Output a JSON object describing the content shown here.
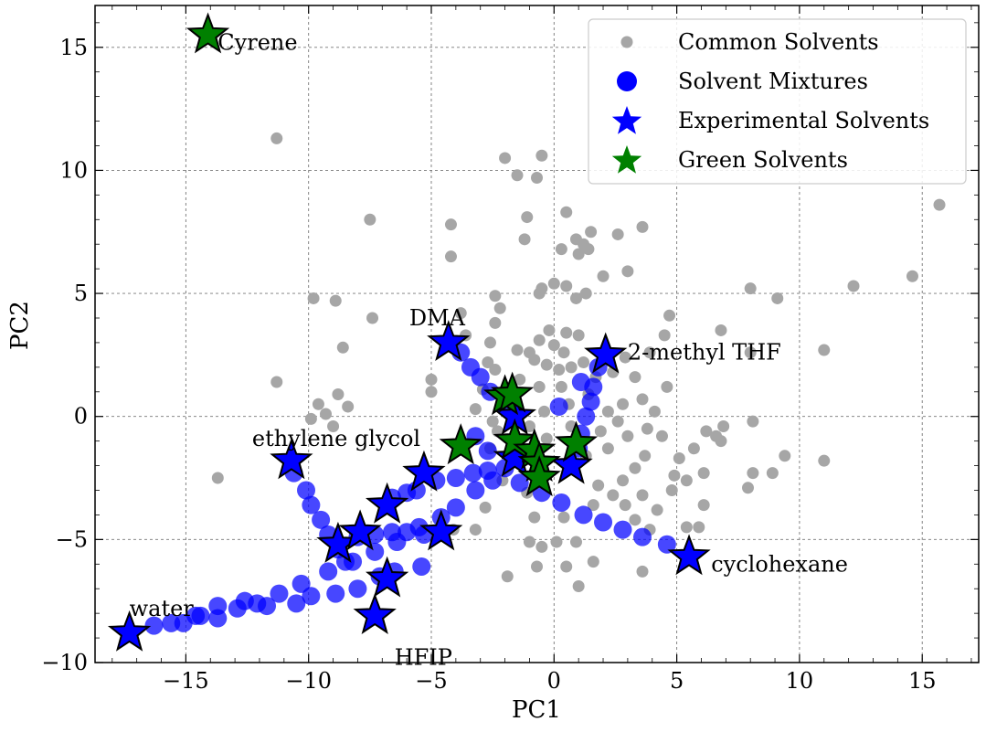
{
  "chart_data": {
    "type": "scatter",
    "xlabel": "PC1",
    "ylabel": "PC2",
    "xlim": [
      -18.7,
      17.3
    ],
    "ylim": [
      -10.0,
      16.7
    ],
    "xticks": [
      -15,
      -10,
      -5,
      0,
      5,
      10,
      15
    ],
    "yticks": [
      -10,
      -5,
      0,
      5,
      10,
      15
    ],
    "xtick_labels": [
      "−15",
      "−10",
      "−5",
      "0",
      "5",
      "10",
      "15"
    ],
    "ytick_labels": [
      "−10",
      "−5",
      "0",
      "5",
      "10",
      "15"
    ],
    "grid": true,
    "legend_position": "top-right",
    "legend": [
      {
        "label": "Common Solvents",
        "marker": "circle-small",
        "color": "#a6a6a6"
      },
      {
        "label": "Solvent Mixtures",
        "marker": "circle",
        "color": "#0000ff"
      },
      {
        "label": "Experimental Solvents",
        "marker": "star",
        "color": "#0000ff"
      },
      {
        "label": "Green Solvents",
        "marker": "star",
        "color": "#008000"
      }
    ],
    "series": [
      {
        "name": "Common Solvents",
        "color": "#a6a6a6",
        "points": [
          [
            -11.3,
            11.3
          ],
          [
            -7.5,
            8.0
          ],
          [
            -4.2,
            7.8
          ],
          [
            -4.2,
            6.5
          ],
          [
            -2.0,
            10.5
          ],
          [
            -1.5,
            9.8
          ],
          [
            -0.5,
            10.6
          ],
          [
            -0.7,
            9.7
          ],
          [
            -1.1,
            8.1
          ],
          [
            -1.2,
            7.2
          ],
          [
            0.5,
            8.3
          ],
          [
            0.9,
            7.2
          ],
          [
            1.2,
            7.0
          ],
          [
            1.5,
            7.5
          ],
          [
            2.6,
            7.4
          ],
          [
            3.6,
            7.7
          ],
          [
            0.3,
            6.8
          ],
          [
            1.0,
            6.6
          ],
          [
            1.4,
            6.8
          ],
          [
            3.0,
            5.9
          ],
          [
            2.0,
            5.7
          ],
          [
            15.7,
            8.6
          ],
          [
            14.6,
            5.7
          ],
          [
            12.2,
            5.3
          ],
          [
            9.1,
            4.8
          ],
          [
            8.0,
            5.2
          ],
          [
            11.0,
            2.7
          ],
          [
            8.0,
            2.6
          ],
          [
            6.8,
            3.5
          ],
          [
            4.7,
            4.1
          ],
          [
            -11.3,
            1.4
          ],
          [
            -9.8,
            4.8
          ],
          [
            -8.9,
            4.7
          ],
          [
            -7.4,
            4.0
          ],
          [
            -8.6,
            2.8
          ],
          [
            -8.8,
            0.9
          ],
          [
            -9.6,
            0.5
          ],
          [
            -8.4,
            0.4
          ],
          [
            -9.9,
            -0.1
          ],
          [
            -13.7,
            -2.5
          ],
          [
            -5.0,
            1.5
          ],
          [
            -3.8,
            4.2
          ],
          [
            -2.4,
            4.9
          ],
          [
            -2.2,
            4.4
          ],
          [
            -2.4,
            3.8
          ],
          [
            -2.6,
            3.0
          ],
          [
            -1.5,
            2.7
          ],
          [
            -1.0,
            2.6
          ],
          [
            -0.6,
            3.1
          ],
          [
            -0.2,
            3.5
          ],
          [
            0.0,
            2.9
          ],
          [
            0.5,
            3.4
          ],
          [
            1.0,
            3.3
          ],
          [
            0.5,
            5.3
          ],
          [
            0.0,
            5.4
          ],
          [
            -0.5,
            5.2
          ],
          [
            0.9,
            4.8
          ],
          [
            1.3,
            5.0
          ],
          [
            -0.8,
            2.3
          ],
          [
            -0.3,
            2.1
          ],
          [
            0.2,
            1.9
          ],
          [
            0.7,
            2.0
          ],
          [
            1.7,
            1.6
          ],
          [
            2.4,
            1.8
          ],
          [
            2.9,
            2.4
          ],
          [
            3.3,
            1.6
          ],
          [
            3.9,
            2.6
          ],
          [
            3.6,
            0.7
          ],
          [
            4.1,
            0.2
          ],
          [
            4.6,
            1.2
          ],
          [
            2.8,
            0.5
          ],
          [
            1.4,
            0.9
          ],
          [
            0.3,
            1.2
          ],
          [
            -0.6,
            1.2
          ],
          [
            -1.4,
            1.5
          ],
          [
            -2.4,
            1.9
          ],
          [
            -2.9,
            1.1
          ],
          [
            -3.2,
            0.3
          ],
          [
            -2.5,
            -0.2
          ],
          [
            -1.0,
            -0.4
          ],
          [
            -0.4,
            0.2
          ],
          [
            0.7,
            -0.4
          ],
          [
            1.9,
            -0.6
          ],
          [
            2.6,
            -0.2
          ],
          [
            3.0,
            -0.8
          ],
          [
            3.8,
            -0.5
          ],
          [
            3.7,
            -1.6
          ],
          [
            3.3,
            -2.1
          ],
          [
            2.8,
            -2.6
          ],
          [
            2.4,
            -3.2
          ],
          [
            2.9,
            -3.6
          ],
          [
            3.6,
            -3.2
          ],
          [
            3.3,
            -4.2
          ],
          [
            3.9,
            -4.6
          ],
          [
            4.2,
            -3.8
          ],
          [
            4.9,
            -2.4
          ],
          [
            5.1,
            -1.7
          ],
          [
            5.7,
            -1.3
          ],
          [
            6.2,
            -0.6
          ],
          [
            6.6,
            -0.8
          ],
          [
            6.9,
            -0.4
          ],
          [
            8.1,
            -0.2
          ],
          [
            8.9,
            -2.3
          ],
          [
            8.1,
            -2.3
          ],
          [
            7.9,
            -2.9
          ],
          [
            9.4,
            -1.6
          ],
          [
            11.0,
            -1.8
          ],
          [
            6.1,
            -2.3
          ],
          [
            5.4,
            -2.6
          ],
          [
            5.4,
            -4.5
          ],
          [
            5.9,
            -4.5
          ],
          [
            6.1,
            -3.6
          ],
          [
            3.6,
            -6.3
          ],
          [
            1.6,
            -5.9
          ],
          [
            1.0,
            -6.9
          ],
          [
            0.5,
            -6.1
          ],
          [
            0.1,
            -5.1
          ],
          [
            -0.5,
            -5.3
          ],
          [
            -1.0,
            -5.1
          ],
          [
            -1.9,
            -6.5
          ],
          [
            -0.8,
            -4.1
          ],
          [
            -1.1,
            -3.1
          ],
          [
            -2.1,
            -2.6
          ],
          [
            -2.8,
            -3.7
          ],
          [
            -3.2,
            -4.6
          ],
          [
            -4.1,
            -4.6
          ],
          [
            -2.6,
            -1.3
          ],
          [
            -2.3,
            -0.6
          ],
          [
            -0.3,
            -0.9
          ],
          [
            1.3,
            -1.6
          ],
          [
            1.8,
            -2.8
          ],
          [
            4.4,
            -0.8
          ],
          [
            -9.3,
            0.1
          ],
          [
            -9.0,
            -0.4
          ],
          [
            -2.7,
            2.2
          ],
          [
            -1.9,
            1.0
          ],
          [
            0.6,
            0.5
          ],
          [
            -0.6,
            5.0
          ],
          [
            0.4,
            2.6
          ],
          [
            1.2,
            2.2
          ],
          [
            2.2,
            0.2
          ],
          [
            4.5,
            3.3
          ],
          [
            2.2,
            -1.3
          ],
          [
            1.6,
            -3.6
          ],
          [
            0.4,
            -4.1
          ],
          [
            -0.7,
            -6.1
          ],
          [
            0.9,
            -5.1
          ],
          [
            6.8,
            -1.0
          ],
          [
            4.8,
            -3.0
          ],
          [
            -3.6,
            3.3
          ],
          [
            -5.0,
            1.0
          ]
        ]
      },
      {
        "name": "Solvent Mixtures",
        "color": "#0000ff",
        "points": [
          [
            -16.3,
            -8.5
          ],
          [
            -15.1,
            -8.4
          ],
          [
            -14.4,
            -8.1
          ],
          [
            -13.7,
            -8.2
          ],
          [
            -12.9,
            -7.8
          ],
          [
            -12.1,
            -7.6
          ],
          [
            -11.2,
            -7.2
          ],
          [
            -10.3,
            -6.8
          ],
          [
            -9.2,
            -6.3
          ],
          [
            -8.2,
            -5.9
          ],
          [
            -7.3,
            -5.5
          ],
          [
            -6.4,
            -5.1
          ],
          [
            -5.5,
            -4.5
          ],
          [
            -4.6,
            -4.1
          ],
          [
            -4.0,
            -3.7
          ],
          [
            -3.2,
            -3.0
          ],
          [
            -2.5,
            -2.6
          ],
          [
            -1.4,
            -2.7
          ],
          [
            -0.5,
            -3.1
          ],
          [
            0.3,
            -3.5
          ],
          [
            1.2,
            -4.0
          ],
          [
            2.0,
            -4.3
          ],
          [
            2.8,
            -4.6
          ],
          [
            3.6,
            -4.9
          ],
          [
            4.6,
            -5.2
          ],
          [
            -15.6,
            -8.4
          ],
          [
            -14.6,
            -8.1
          ],
          [
            -13.7,
            -7.7
          ],
          [
            -12.6,
            -7.5
          ],
          [
            -11.7,
            -7.7
          ],
          [
            -10.5,
            -7.6
          ],
          [
            -9.9,
            -7.3
          ],
          [
            -8.9,
            -7.2
          ],
          [
            -8.0,
            -7.0
          ],
          [
            -7.1,
            -6.5
          ],
          [
            -6.5,
            -6.3
          ],
          [
            -5.4,
            -6.1
          ],
          [
            -10.6,
            -2.3
          ],
          [
            -10.1,
            -3.0
          ],
          [
            -9.9,
            -3.6
          ],
          [
            -9.5,
            -4.2
          ],
          [
            -9.2,
            -4.8
          ],
          [
            -8.8,
            -5.4
          ],
          [
            -8.5,
            -5.9
          ],
          [
            -8.0,
            -4.9
          ],
          [
            -7.3,
            -4.8
          ],
          [
            -6.6,
            -4.7
          ],
          [
            -6.0,
            -4.7
          ],
          [
            -5.3,
            -4.8
          ],
          [
            -6.6,
            -3.3
          ],
          [
            -6.0,
            -3.1
          ],
          [
            -5.6,
            -3.0
          ],
          [
            -4.8,
            -2.6
          ],
          [
            -4.0,
            -2.5
          ],
          [
            -3.3,
            -2.3
          ],
          [
            -2.7,
            -2.2
          ],
          [
            -2.0,
            -2.1
          ],
          [
            -3.8,
            2.6
          ],
          [
            -3.4,
            2.0
          ],
          [
            -3.0,
            1.6
          ],
          [
            -2.6,
            1.0
          ],
          [
            -2.0,
            0.5
          ],
          [
            1.8,
            2.0
          ],
          [
            1.6,
            1.2
          ],
          [
            1.5,
            0.6
          ],
          [
            1.3,
            0.0
          ],
          [
            1.1,
            -0.7
          ],
          [
            1.0,
            -1.3
          ],
          [
            0.2,
            0.4
          ],
          [
            -2.7,
            -1.4
          ],
          [
            -3.2,
            -0.8
          ],
          [
            1.1,
            1.4
          ]
        ]
      },
      {
        "name": "Experimental Solvents",
        "color": "#0000ff",
        "points": [
          [
            -17.3,
            -8.8
          ],
          [
            -7.3,
            -8.1
          ],
          [
            -6.8,
            -6.6
          ],
          [
            -4.3,
            3.0
          ],
          [
            2.1,
            2.5
          ],
          [
            5.5,
            -5.7
          ],
          [
            -10.7,
            -1.8
          ],
          [
            -8.8,
            -5.2
          ],
          [
            -7.9,
            -4.7
          ],
          [
            -6.8,
            -3.6
          ],
          [
            -5.3,
            -2.3
          ],
          [
            -4.6,
            -4.7
          ],
          [
            -1.6,
            0.0
          ],
          [
            -1.6,
            -1.7
          ],
          [
            0.7,
            -2.0
          ]
        ]
      },
      {
        "name": "Green Solvents",
        "color": "#008000",
        "points": [
          [
            -14.1,
            15.5
          ],
          [
            -3.8,
            -1.2
          ],
          [
            -2.0,
            0.8
          ],
          [
            -1.7,
            0.9
          ],
          [
            -1.6,
            -1.0
          ],
          [
            -0.8,
            -1.4
          ],
          [
            -0.6,
            -1.9
          ],
          [
            -0.6,
            -2.5
          ],
          [
            0.9,
            -1.1
          ]
        ]
      }
    ],
    "annotations": [
      {
        "text": "Cyrene",
        "x": -13.7,
        "y": 15.2
      },
      {
        "text": "DMA",
        "x": -5.9,
        "y": 4.0
      },
      {
        "text": "2-methyl THF",
        "x": 3.0,
        "y": 2.6
      },
      {
        "text": "ethylene glycol",
        "x": -12.3,
        "y": -0.9
      },
      {
        "text": "water",
        "x": -17.3,
        "y": -7.8
      },
      {
        "text": "HFIP",
        "x": -6.5,
        "y": -9.8
      },
      {
        "text": "cyclohexane",
        "x": 6.4,
        "y": -6.0
      }
    ]
  }
}
